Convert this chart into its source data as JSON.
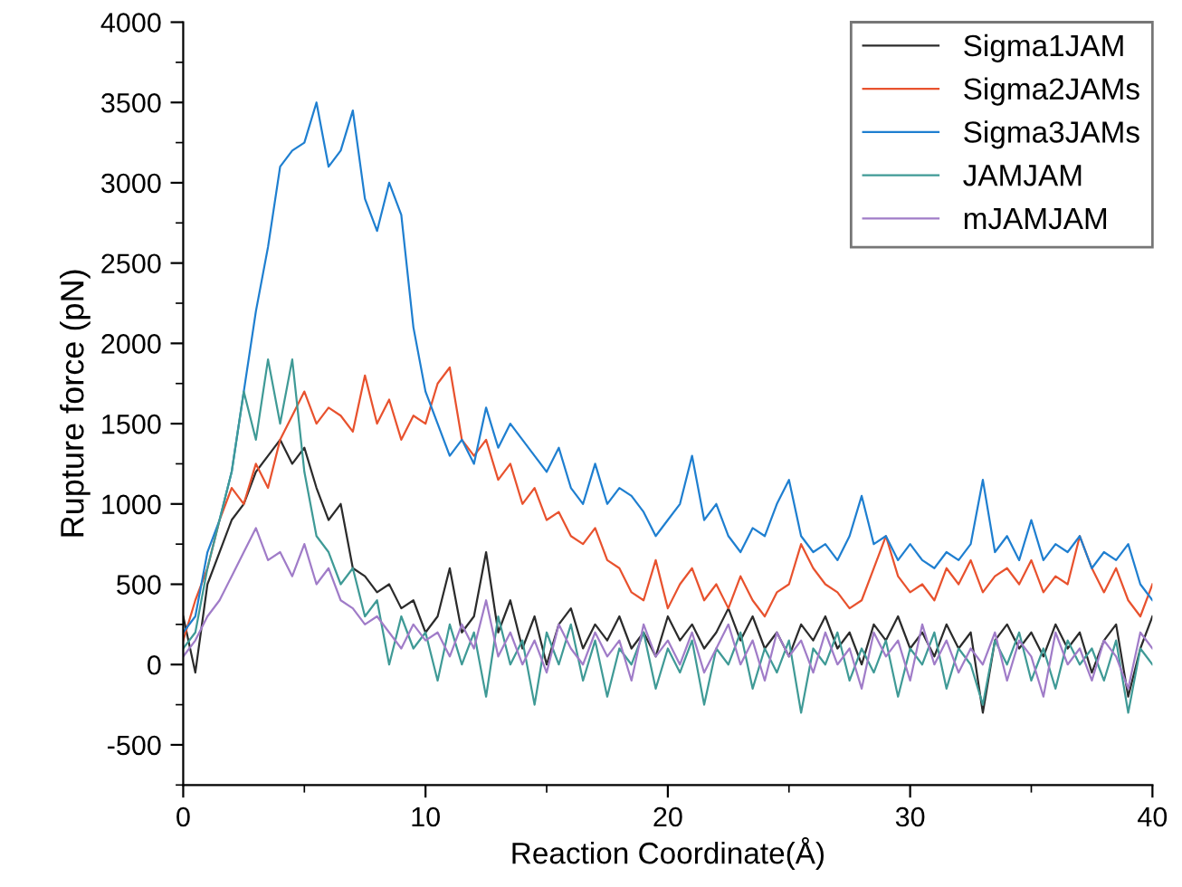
{
  "chart_data": {
    "type": "line",
    "xlabel": "Reaction Coordinate(Å)",
    "ylabel": "Rupture force (pN)",
    "x": [
      0,
      0.5,
      1,
      1.5,
      2,
      2.5,
      3,
      3.5,
      4,
      4.5,
      5,
      5.5,
      6,
      6.5,
      7,
      7.5,
      8,
      8.5,
      9,
      9.5,
      10,
      10.5,
      11,
      11.5,
      12,
      12.5,
      13,
      13.5,
      14,
      14.5,
      15,
      15.5,
      16,
      16.5,
      17,
      17.5,
      18,
      18.5,
      19,
      19.5,
      20,
      20.5,
      21,
      21.5,
      22,
      22.5,
      23,
      23.5,
      24,
      24.5,
      25,
      25.5,
      26,
      26.5,
      27,
      27.5,
      28,
      28.5,
      29,
      29.5,
      30,
      30.5,
      31,
      31.5,
      32,
      32.5,
      33,
      33.5,
      34,
      34.5,
      35,
      35.5,
      36,
      36.5,
      37,
      37.5,
      38,
      38.5,
      39,
      39.5,
      40
    ],
    "series": [
      {
        "name": "Sigma1JAM",
        "color": "#2b2b2b",
        "values": [
          300,
          -50,
          500,
          700,
          900,
          1000,
          1200,
          1300,
          1400,
          1250,
          1350,
          1100,
          900,
          1000,
          600,
          550,
          450,
          500,
          350,
          400,
          200,
          300,
          600,
          200,
          300,
          700,
          200,
          400,
          100,
          300,
          0,
          250,
          350,
          100,
          250,
          150,
          300,
          100,
          200,
          50,
          300,
          150,
          250,
          100,
          200,
          350,
          150,
          300,
          100,
          200,
          50,
          250,
          150,
          300,
          100,
          200,
          0,
          250,
          150,
          300,
          100,
          200,
          50,
          250,
          100,
          200,
          -300,
          150,
          250,
          100,
          200,
          50,
          250,
          100,
          200,
          -50,
          150,
          250,
          -200,
          100,
          300
        ]
      },
      {
        "name": "Sigma2JAMs",
        "color": "#e8522e",
        "values": [
          150,
          400,
          600,
          900,
          1100,
          1000,
          1250,
          1100,
          1400,
          1550,
          1700,
          1500,
          1600,
          1550,
          1450,
          1800,
          1500,
          1650,
          1400,
          1550,
          1500,
          1750,
          1850,
          1400,
          1300,
          1400,
          1150,
          1250,
          1000,
          1100,
          900,
          950,
          800,
          750,
          850,
          650,
          600,
          450,
          400,
          650,
          350,
          500,
          600,
          400,
          500,
          350,
          550,
          400,
          300,
          450,
          500,
          750,
          600,
          500,
          450,
          350,
          400,
          600,
          800,
          550,
          450,
          500,
          400,
          600,
          500,
          650,
          450,
          550,
          600,
          500,
          650,
          450,
          550,
          500,
          800,
          600,
          450,
          600,
          400,
          300,
          500
        ]
      },
      {
        "name": "Sigma3JAMs",
        "color": "#1f7fd0",
        "values": [
          200,
          300,
          700,
          900,
          1200,
          1700,
          2200,
          2600,
          3100,
          3200,
          3250,
          3500,
          3100,
          3200,
          3450,
          2900,
          2700,
          3000,
          2800,
          2100,
          1700,
          1500,
          1300,
          1400,
          1250,
          1600,
          1350,
          1500,
          1400,
          1300,
          1200,
          1350,
          1100,
          1000,
          1250,
          1000,
          1100,
          1050,
          950,
          800,
          900,
          1000,
          1300,
          900,
          1000,
          800,
          700,
          850,
          800,
          1000,
          1150,
          800,
          700,
          750,
          650,
          800,
          1050,
          750,
          800,
          650,
          750,
          650,
          600,
          700,
          650,
          750,
          1150,
          700,
          800,
          650,
          900,
          650,
          750,
          700,
          800,
          600,
          700,
          650,
          750,
          500,
          400
        ]
      },
      {
        "name": "JAMJAM",
        "color": "#3f9a96",
        "values": [
          100,
          200,
          600,
          900,
          1200,
          1700,
          1400,
          1900,
          1500,
          1900,
          1200,
          800,
          700,
          500,
          600,
          300,
          400,
          0,
          300,
          100,
          200,
          -100,
          250,
          0,
          200,
          -200,
          300,
          0,
          150,
          -250,
          200,
          0,
          250,
          -100,
          150,
          -200,
          100,
          0,
          200,
          -150,
          100,
          -50,
          150,
          -250,
          100,
          0,
          200,
          -150,
          100,
          -50,
          150,
          -300,
          100,
          0,
          200,
          -100,
          100,
          -50,
          150,
          -200,
          100,
          0,
          200,
          -150,
          100,
          0,
          -250,
          150,
          0,
          200,
          -100,
          100,
          -150,
          150,
          0,
          100,
          -100,
          150,
          -300,
          100,
          0
        ]
      },
      {
        "name": "mJAMJAM",
        "color": "#a07cc8",
        "values": [
          50,
          150,
          300,
          400,
          550,
          700,
          850,
          650,
          700,
          550,
          750,
          500,
          600,
          400,
          350,
          250,
          300,
          200,
          100,
          250,
          150,
          200,
          50,
          250,
          100,
          400,
          50,
          200,
          0,
          150,
          -50,
          250,
          100,
          0,
          200,
          50,
          150,
          -100,
          250,
          50,
          150,
          0,
          200,
          -50,
          100,
          250,
          0,
          150,
          -100,
          200,
          50,
          150,
          -50,
          200,
          0,
          100,
          -150,
          200,
          50,
          150,
          -100,
          250,
          0,
          150,
          -50,
          100,
          0,
          200,
          -100,
          150,
          50,
          -200,
          200,
          0,
          100,
          -100,
          150,
          50,
          -150,
          200,
          100
        ]
      }
    ],
    "xlim": [
      0,
      40
    ],
    "ylim": [
      -750,
      4000
    ],
    "xticks": [
      0,
      {
        "value": 5,
        "label": null
      },
      10,
      {
        "value": 15,
        "label": null
      },
      20,
      {
        "value": 25,
        "label": null
      },
      30,
      {
        "value": 35,
        "label": null
      },
      40
    ],
    "yticks": [
      {
        "value": -750,
        "label": null
      },
      -500,
      {
        "value": -250,
        "label": null
      },
      0,
      {
        "value": 250,
        "label": null
      },
      500,
      {
        "value": 750,
        "label": null
      },
      1000,
      {
        "value": 1250,
        "label": null
      },
      1500,
      {
        "value": 1750,
        "label": null
      },
      2000,
      {
        "value": 2250,
        "label": null
      },
      2500,
      {
        "value": 2750,
        "label": null
      },
      3000,
      {
        "value": 3250,
        "label": null
      },
      3500,
      {
        "value": 3750,
        "label": null
      },
      4000
    ],
    "grid": false,
    "legend": "top right",
    "line_style": "solid",
    "marker": "none"
  }
}
